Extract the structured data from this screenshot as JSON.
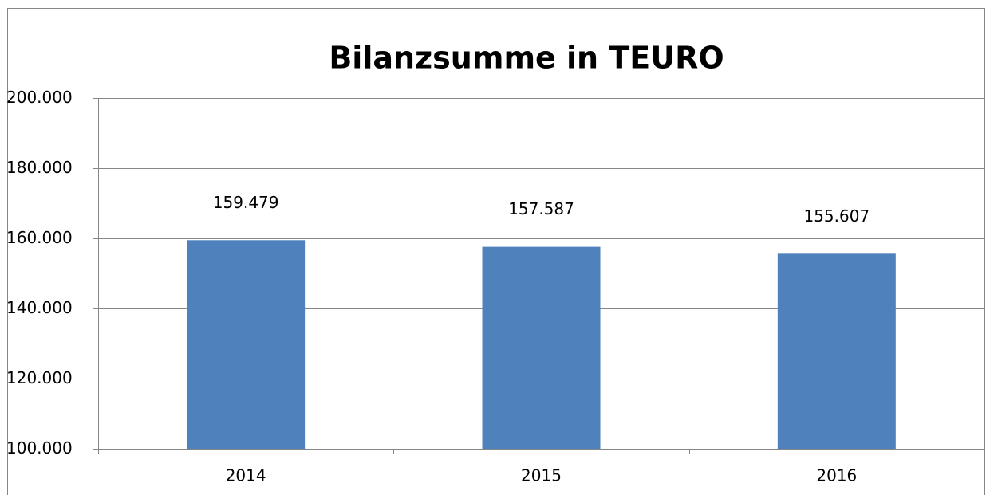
{
  "chart_data": {
    "type": "bar",
    "title": "Bilanzsumme in TEURO",
    "categories": [
      "2014",
      "2015",
      "2016"
    ],
    "values": [
      159479,
      157587,
      155607
    ],
    "value_labels": [
      "159.479",
      "157.587",
      "155.607"
    ],
    "color": "#4f81bd",
    "ylim": [
      100000,
      200000
    ],
    "yticks": [
      {
        "value": 100000,
        "label": "100.000"
      },
      {
        "value": 120000,
        "label": "120.000"
      },
      {
        "value": 140000,
        "label": "140.000"
      },
      {
        "value": 160000,
        "label": "160.000"
      },
      {
        "value": 180000,
        "label": "180.000"
      },
      {
        "value": 200000,
        "label": "200.000"
      }
    ],
    "grid": true
  }
}
